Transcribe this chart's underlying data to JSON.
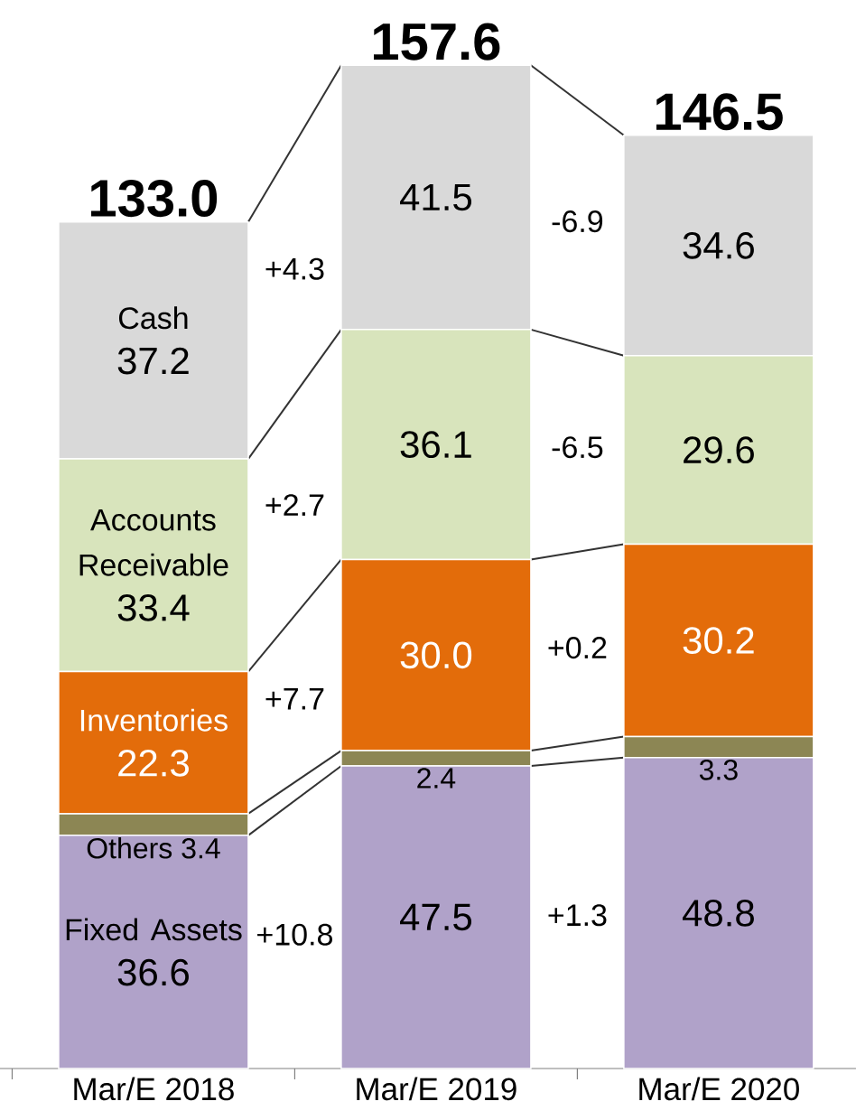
{
  "chart_data": {
    "type": "bar",
    "stacked": true,
    "categories": [
      "Mar/E 2018",
      "Mar/E 2019",
      "Mar/E 2020"
    ],
    "series": [
      {
        "name": "Fixed Assets",
        "color": "#b0a2c9",
        "values": [
          36.6,
          47.5,
          48.8
        ],
        "value_labels": [
          "36.6",
          "47.5",
          "48.8"
        ]
      },
      {
        "name": "Others",
        "color": "#8c8654",
        "values": [
          3.4,
          2.4,
          3.3
        ],
        "value_labels": [
          "3.4",
          "2.4",
          "3.3"
        ]
      },
      {
        "name": "Inventories",
        "color": "#e36c0a",
        "values": [
          22.3,
          30.0,
          30.2
        ],
        "value_labels": [
          "22.3",
          "30.0",
          "30.2"
        ]
      },
      {
        "name": "Accounts Receivable",
        "color": "#d8e4bc",
        "values": [
          33.4,
          36.1,
          29.6
        ],
        "value_labels": [
          "33.4",
          "36.1",
          "29.6"
        ]
      },
      {
        "name": "Cash",
        "color": "#d9d9d9",
        "values": [
          37.2,
          41.5,
          34.6
        ],
        "value_labels": [
          "37.2",
          "41.5",
          "34.6"
        ]
      }
    ],
    "totals": [
      "133.0",
      "157.6",
      "146.5"
    ],
    "annotations": [
      "+4.3",
      "+2.7",
      "+7.7",
      "+10.8",
      "-6.9",
      "-6.5",
      "+0.2",
      "+1.3"
    ]
  }
}
